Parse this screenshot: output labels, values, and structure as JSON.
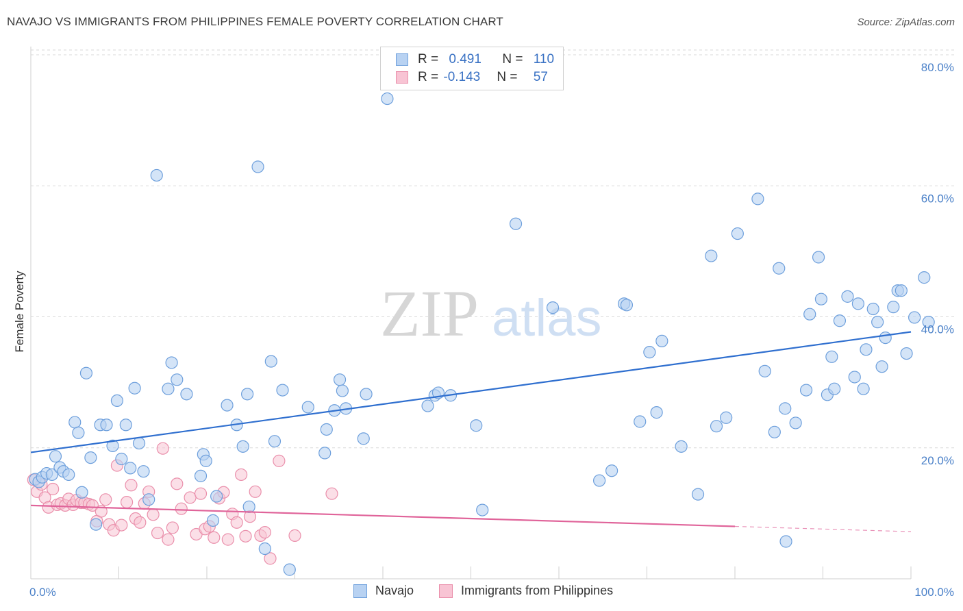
{
  "title": "NAVAJO VS IMMIGRANTS FROM PHILIPPINES FEMALE POVERTY CORRELATION CHART",
  "source": "Source: ZipAtlas.com",
  "watermark": {
    "zip": "ZIP",
    "atlas": "atlas"
  },
  "legend_top": [
    {
      "r_label": "R = ",
      "r_value": "0.491",
      "n_label": "N = ",
      "n_value": "110"
    },
    {
      "r_label": "R = ",
      "r_value": "-0.143",
      "n_label": "N = ",
      "n_value": "57"
    }
  ],
  "colors": {
    "navajo_fill": "#b8d2f2",
    "navajo_stroke": "#6d9fdc",
    "navajo_line": "#2f6fcf",
    "phil_fill": "#f8c4d4",
    "phil_stroke": "#ea8fab",
    "phil_line": "#e0649a",
    "grid": "#d9d9d9",
    "tick_label": "#4a80c8"
  },
  "chart_data": {
    "type": "scatter",
    "title": "NAVAJO VS IMMIGRANTS FROM PHILIPPINES FEMALE POVERTY CORRELATION CHART",
    "xlabel": "",
    "ylabel": "Female Poverty",
    "xlim": [
      0,
      100
    ],
    "ylim": [
      0,
      80
    ],
    "y_ticks": [
      20,
      40,
      60,
      80
    ],
    "y_tick_labels": [
      "20.0%",
      "40.0%",
      "60.0%",
      "80.0%"
    ],
    "x_tick_labels": [
      "0.0%",
      "100.0%"
    ],
    "grid": "horizontal dashed",
    "legend_position": "bottom",
    "series": [
      {
        "name": "Navajo",
        "r": 0.491,
        "n": 110,
        "trend": {
          "x": [
            0,
            100
          ],
          "y": [
            19.3,
            37.7
          ]
        },
        "points": [
          [
            0.5,
            15.2
          ],
          [
            0.9,
            14.8
          ],
          [
            1.3,
            15.5
          ],
          [
            1.8,
            16.1
          ],
          [
            2.4,
            15.9
          ],
          [
            2.8,
            18.7
          ],
          [
            3.3,
            17.0
          ],
          [
            3.7,
            16.4
          ],
          [
            4.3,
            15.9
          ],
          [
            5.0,
            23.9
          ],
          [
            5.4,
            22.3
          ],
          [
            5.8,
            13.2
          ],
          [
            6.3,
            31.4
          ],
          [
            6.8,
            18.5
          ],
          [
            7.4,
            8.3
          ],
          [
            7.9,
            23.5
          ],
          [
            8.6,
            23.5
          ],
          [
            9.3,
            20.3
          ],
          [
            9.8,
            27.2
          ],
          [
            10.3,
            18.3
          ],
          [
            10.8,
            23.5
          ],
          [
            11.3,
            16.9
          ],
          [
            11.8,
            29.1
          ],
          [
            12.3,
            20.7
          ],
          [
            12.8,
            16.4
          ],
          [
            13.4,
            12.1
          ],
          [
            14.3,
            61.6
          ],
          [
            15.6,
            29.0
          ],
          [
            16.0,
            33.0
          ],
          [
            16.6,
            30.4
          ],
          [
            17.7,
            28.2
          ],
          [
            19.3,
            15.7
          ],
          [
            19.6,
            19.0
          ],
          [
            19.9,
            18.0
          ],
          [
            20.7,
            8.9
          ],
          [
            21.1,
            12.6
          ],
          [
            22.3,
            26.5
          ],
          [
            23.4,
            23.5
          ],
          [
            24.1,
            20.2
          ],
          [
            24.6,
            28.2
          ],
          [
            24.8,
            11.0
          ],
          [
            25.8,
            62.9
          ],
          [
            26.6,
            4.6
          ],
          [
            27.3,
            33.2
          ],
          [
            27.7,
            21.0
          ],
          [
            28.6,
            28.8
          ],
          [
            29.4,
            1.4
          ],
          [
            31.5,
            26.2
          ],
          [
            33.4,
            19.2
          ],
          [
            33.6,
            22.8
          ],
          [
            34.5,
            25.7
          ],
          [
            35.1,
            30.4
          ],
          [
            35.4,
            28.7
          ],
          [
            35.8,
            26.0
          ],
          [
            37.8,
            21.4
          ],
          [
            38.1,
            28.2
          ],
          [
            40.5,
            73.3
          ],
          [
            45.1,
            26.4
          ],
          [
            45.9,
            28.0
          ],
          [
            46.3,
            28.4
          ],
          [
            47.7,
            28.0
          ],
          [
            50.6,
            23.4
          ],
          [
            51.3,
            10.5
          ],
          [
            55.1,
            54.2
          ],
          [
            59.3,
            41.4
          ],
          [
            64.6,
            15.0
          ],
          [
            66.0,
            16.5
          ],
          [
            67.4,
            42.0
          ],
          [
            67.7,
            41.8
          ],
          [
            69.2,
            24.0
          ],
          [
            70.3,
            34.6
          ],
          [
            71.1,
            25.4
          ],
          [
            71.7,
            36.3
          ],
          [
            73.9,
            20.2
          ],
          [
            75.8,
            12.9
          ],
          [
            77.3,
            49.3
          ],
          [
            77.9,
            23.3
          ],
          [
            79.0,
            24.6
          ],
          [
            80.3,
            52.7
          ],
          [
            82.6,
            58.0
          ],
          [
            83.4,
            31.7
          ],
          [
            84.5,
            22.4
          ],
          [
            85.0,
            47.4
          ],
          [
            85.7,
            26.0
          ],
          [
            86.9,
            23.8
          ],
          [
            88.1,
            28.8
          ],
          [
            88.5,
            40.4
          ],
          [
            89.5,
            49.1
          ],
          [
            89.8,
            42.7
          ],
          [
            90.5,
            28.1
          ],
          [
            91.0,
            33.9
          ],
          [
            91.3,
            29.0
          ],
          [
            91.9,
            39.4
          ],
          [
            92.8,
            43.1
          ],
          [
            93.6,
            30.8
          ],
          [
            94.0,
            42.0
          ],
          [
            94.6,
            29.0
          ],
          [
            94.9,
            35.0
          ],
          [
            95.7,
            41.2
          ],
          [
            96.2,
            39.2
          ],
          [
            96.7,
            32.4
          ],
          [
            97.1,
            36.8
          ],
          [
            98.0,
            41.5
          ],
          [
            98.5,
            44.0
          ],
          [
            98.9,
            44.0
          ],
          [
            99.5,
            34.4
          ],
          [
            100.4,
            39.9
          ],
          [
            101.5,
            46.0
          ],
          [
            102.0,
            39.2
          ],
          [
            85.8,
            5.7
          ]
        ]
      },
      {
        "name": "Immigrants from Philippines",
        "r": -0.143,
        "n": 57,
        "trend": {
          "x": [
            0,
            80
          ],
          "y": [
            11.2,
            8.0
          ]
        },
        "trend_dashed_ext": {
          "x": [
            80,
            100
          ],
          "y": [
            8.0,
            7.2
          ]
        },
        "points": [
          [
            0.3,
            15.1
          ],
          [
            0.7,
            13.3
          ],
          [
            1.2,
            14.4
          ],
          [
            1.6,
            12.4
          ],
          [
            2.0,
            10.9
          ],
          [
            2.5,
            13.7
          ],
          [
            3.0,
            11.3
          ],
          [
            3.4,
            11.5
          ],
          [
            3.9,
            11.2
          ],
          [
            4.3,
            12.2
          ],
          [
            4.8,
            11.3
          ],
          [
            5.2,
            12.0
          ],
          [
            5.7,
            11.6
          ],
          [
            6.1,
            11.6
          ],
          [
            6.6,
            11.4
          ],
          [
            7.0,
            11.2
          ],
          [
            7.5,
            8.8
          ],
          [
            8.0,
            10.3
          ],
          [
            8.5,
            12.1
          ],
          [
            8.9,
            8.3
          ],
          [
            9.4,
            7.4
          ],
          [
            9.8,
            17.3
          ],
          [
            10.3,
            8.2
          ],
          [
            10.9,
            11.7
          ],
          [
            11.4,
            14.3
          ],
          [
            11.9,
            9.2
          ],
          [
            12.4,
            8.6
          ],
          [
            12.9,
            11.5
          ],
          [
            13.4,
            13.3
          ],
          [
            13.9,
            9.8
          ],
          [
            14.4,
            7.0
          ],
          [
            15.0,
            19.9
          ],
          [
            15.6,
            6.0
          ],
          [
            16.1,
            7.8
          ],
          [
            16.6,
            14.5
          ],
          [
            17.1,
            10.7
          ],
          [
            18.1,
            12.4
          ],
          [
            18.8,
            6.8
          ],
          [
            19.3,
            13.0
          ],
          [
            19.8,
            7.6
          ],
          [
            20.3,
            8.0
          ],
          [
            20.8,
            6.3
          ],
          [
            21.4,
            12.3
          ],
          [
            21.9,
            13.2
          ],
          [
            22.4,
            6.0
          ],
          [
            22.9,
            9.9
          ],
          [
            23.4,
            8.6
          ],
          [
            23.9,
            15.9
          ],
          [
            24.4,
            6.5
          ],
          [
            24.9,
            9.5
          ],
          [
            25.5,
            13.3
          ],
          [
            26.1,
            6.6
          ],
          [
            26.6,
            7.1
          ],
          [
            27.2,
            3.1
          ],
          [
            28.2,
            18.0
          ],
          [
            30.0,
            6.6
          ],
          [
            34.2,
            13.0
          ]
        ]
      }
    ]
  },
  "bottom_legend": [
    {
      "label": "Navajo"
    },
    {
      "label": "Immigrants from Philippines"
    }
  ]
}
